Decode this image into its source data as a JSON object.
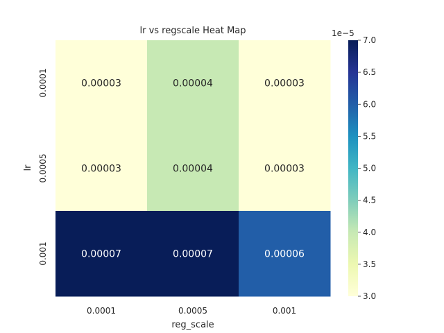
{
  "chart_data": {
    "type": "heatmap",
    "title": "lr vs regscale Heat Map",
    "xlabel": "reg_scale",
    "ylabel": "lr",
    "x_categories": [
      "0.0001",
      "0.0005",
      "0.001"
    ],
    "y_categories": [
      "0.0001",
      "0.0005",
      "0.001"
    ],
    "values": [
      [
        3e-05,
        4e-05,
        3e-05
      ],
      [
        3e-05,
        4e-05,
        3e-05
      ],
      [
        7e-05,
        7e-05,
        6e-05
      ]
    ],
    "cell_labels": [
      [
        "0.00003",
        "0.00004",
        "0.00003"
      ],
      [
        "0.00003",
        "0.00004",
        "0.00003"
      ],
      [
        "0.00007",
        "0.00007",
        "0.00006"
      ]
    ],
    "colorbar": {
      "colormap": "YlGnBu",
      "range": [
        3.0,
        7.0
      ],
      "multiplier": "1e−5",
      "ticks": [
        "3.0",
        "3.5",
        "4.0",
        "4.5",
        "5.0",
        "5.5",
        "6.0",
        "6.5",
        "7.0"
      ]
    },
    "colors": {
      "0.00003": "#ffffd9",
      "0.00004": "#c7e9b4",
      "0.00006": "#225ea8",
      "0.00007": "#081d58"
    }
  }
}
